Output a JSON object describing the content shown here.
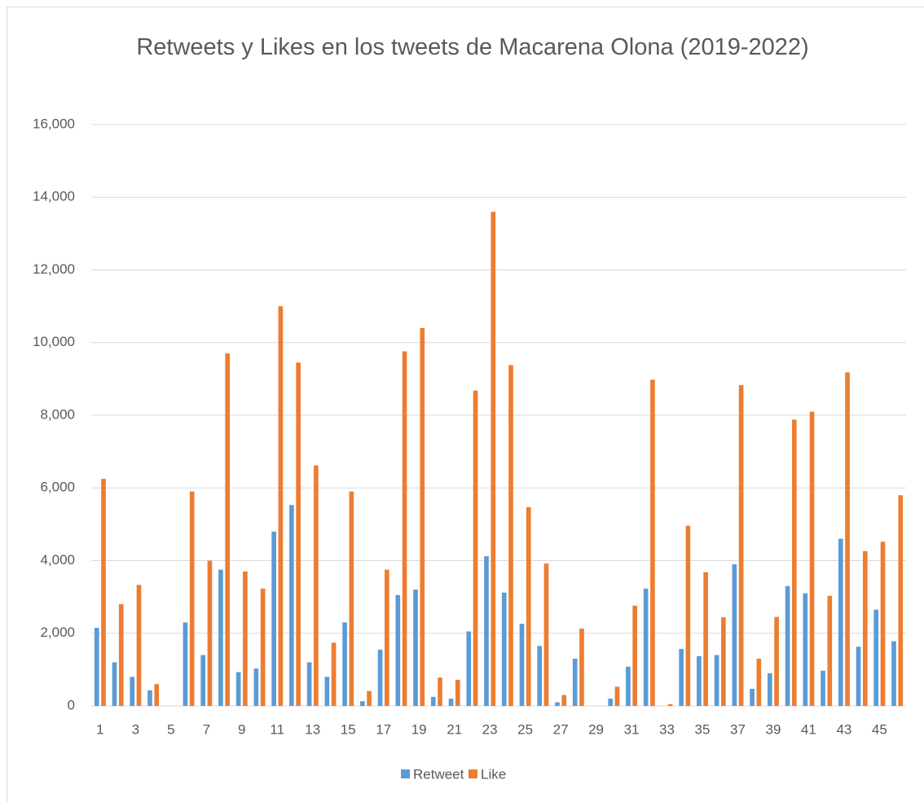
{
  "chart_data": {
    "type": "bar",
    "title": "Retweets y Likes en los tweets de Macarena Olona (2019-2022)",
    "categories": [
      "1",
      null,
      "3",
      null,
      "5",
      null,
      "7",
      null,
      "9",
      null,
      "11",
      null,
      "13",
      null,
      "15",
      null,
      "17",
      null,
      "19",
      null,
      "21",
      null,
      "23",
      null,
      "25",
      null,
      "27",
      null,
      "29",
      null,
      "31",
      null,
      "33",
      null,
      "35",
      null,
      "37",
      null,
      "39",
      null,
      "41",
      null,
      "43",
      null,
      "45",
      null
    ],
    "series": [
      {
        "name": "Retweet",
        "color": "#5b9bd5",
        "values": [
          2150,
          1200,
          800,
          430,
          0,
          2300,
          1400,
          3750,
          930,
          1030,
          4800,
          5530,
          1200,
          800,
          2300,
          130,
          1550,
          3050,
          3200,
          250,
          200,
          2050,
          4120,
          3120,
          2260,
          1650,
          100,
          1300,
          0,
          200,
          1080,
          3230,
          0,
          1570,
          1370,
          1400,
          3900,
          470,
          900,
          3300,
          3100,
          970,
          4600,
          1630,
          2650,
          1780
        ]
      },
      {
        "name": "Like",
        "color": "#ed7d31",
        "values": [
          6250,
          2800,
          3330,
          600,
          0,
          5900,
          4000,
          9700,
          3700,
          3230,
          11000,
          9450,
          6620,
          1740,
          5900,
          410,
          3750,
          9760,
          10400,
          780,
          720,
          8680,
          13600,
          9380,
          5470,
          3920,
          300,
          2130,
          0,
          530,
          2760,
          8980,
          50,
          4960,
          3680,
          2440,
          8830,
          1300,
          2450,
          7880,
          8100,
          3030,
          9180,
          4260,
          4520,
          5800
        ]
      }
    ],
    "ylim": [
      0,
      16000
    ],
    "yticks": [
      0,
      {
        "value": 2000,
        "label": "2,000"
      },
      {
        "value": 4000,
        "label": "4,000"
      },
      {
        "value": 6000,
        "label": "6,000"
      },
      {
        "value": 8000,
        "label": "8,000"
      },
      {
        "value": 10000,
        "label": "10,000"
      },
      {
        "value": 12000,
        "label": "12,000"
      },
      {
        "value": 14000,
        "label": "14,000"
      },
      {
        "value": 16000,
        "label": "16,000"
      }
    ],
    "grid": true,
    "legend": "bottom"
  }
}
